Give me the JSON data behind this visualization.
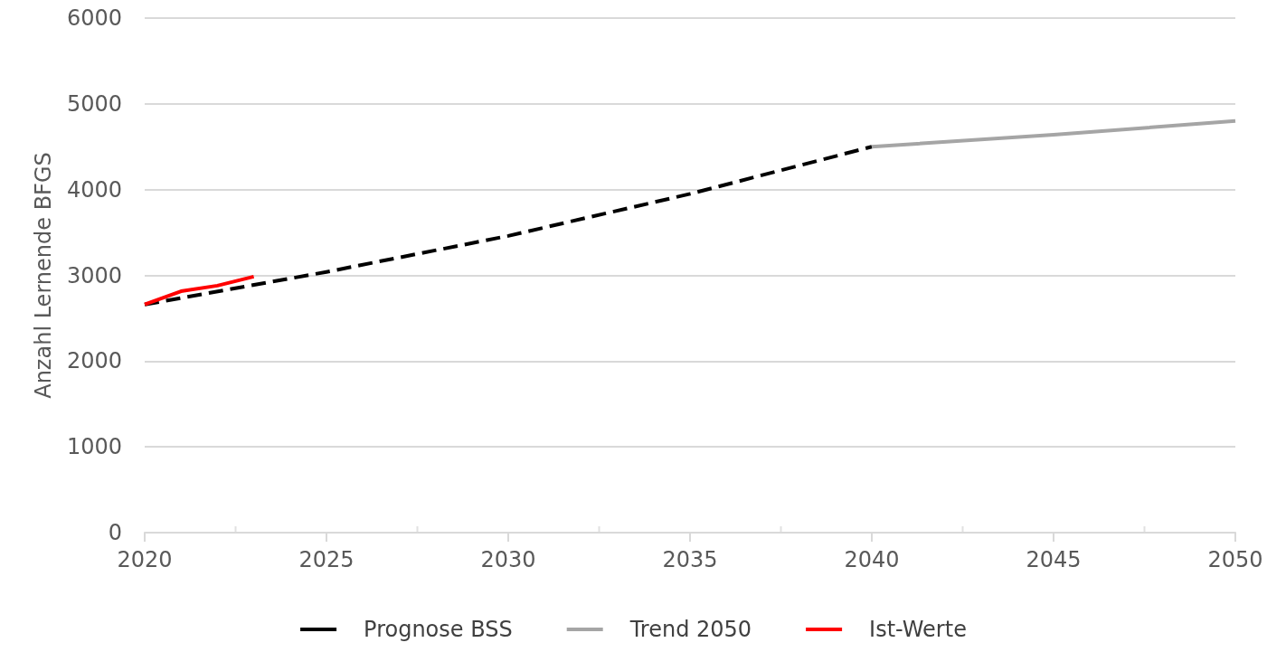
{
  "chart_data": {
    "type": "line",
    "ylabel": "Anzahl Lernende BFGS",
    "xlim": [
      2020,
      2050
    ],
    "xticks": [
      2020,
      {
        "value": 2022.5,
        "label": null
      },
      2025,
      {
        "value": 2027.5,
        "label": null
      },
      2030,
      {
        "value": 2032.5,
        "label": null
      },
      2035,
      {
        "value": 2037.5,
        "label": null
      },
      2040,
      {
        "value": 2042.5,
        "label": null
      },
      2045,
      {
        "value": 2047.5,
        "label": null
      },
      2050
    ],
    "ylim": [
      0,
      6000
    ],
    "yticks": [
      0,
      1000,
      2000,
      3000,
      4000,
      5000,
      6000
    ],
    "grid": "y",
    "legend": "bottom",
    "marker": "none",
    "series": [
      {
        "name": "Prognose BSS",
        "color": "#000000",
        "line_style": "dashed",
        "x": [
          2020,
          2025,
          2030,
          2035,
          2040
        ],
        "values": [
          2660,
          3040,
          3460,
          3950,
          4500
        ]
      },
      {
        "name": "Trend 2050",
        "color": "#a5a5a5",
        "line_style": "solid",
        "x": [
          2040,
          2045,
          2050
        ],
        "values": [
          4500,
          4640,
          4800
        ]
      },
      {
        "name": "Ist-Werte",
        "color": "#ff0000",
        "line_style": "solid",
        "x": [
          2020,
          2021,
          2022,
          2023
        ],
        "values": [
          2660,
          2815,
          2880,
          2985
        ]
      }
    ]
  }
}
